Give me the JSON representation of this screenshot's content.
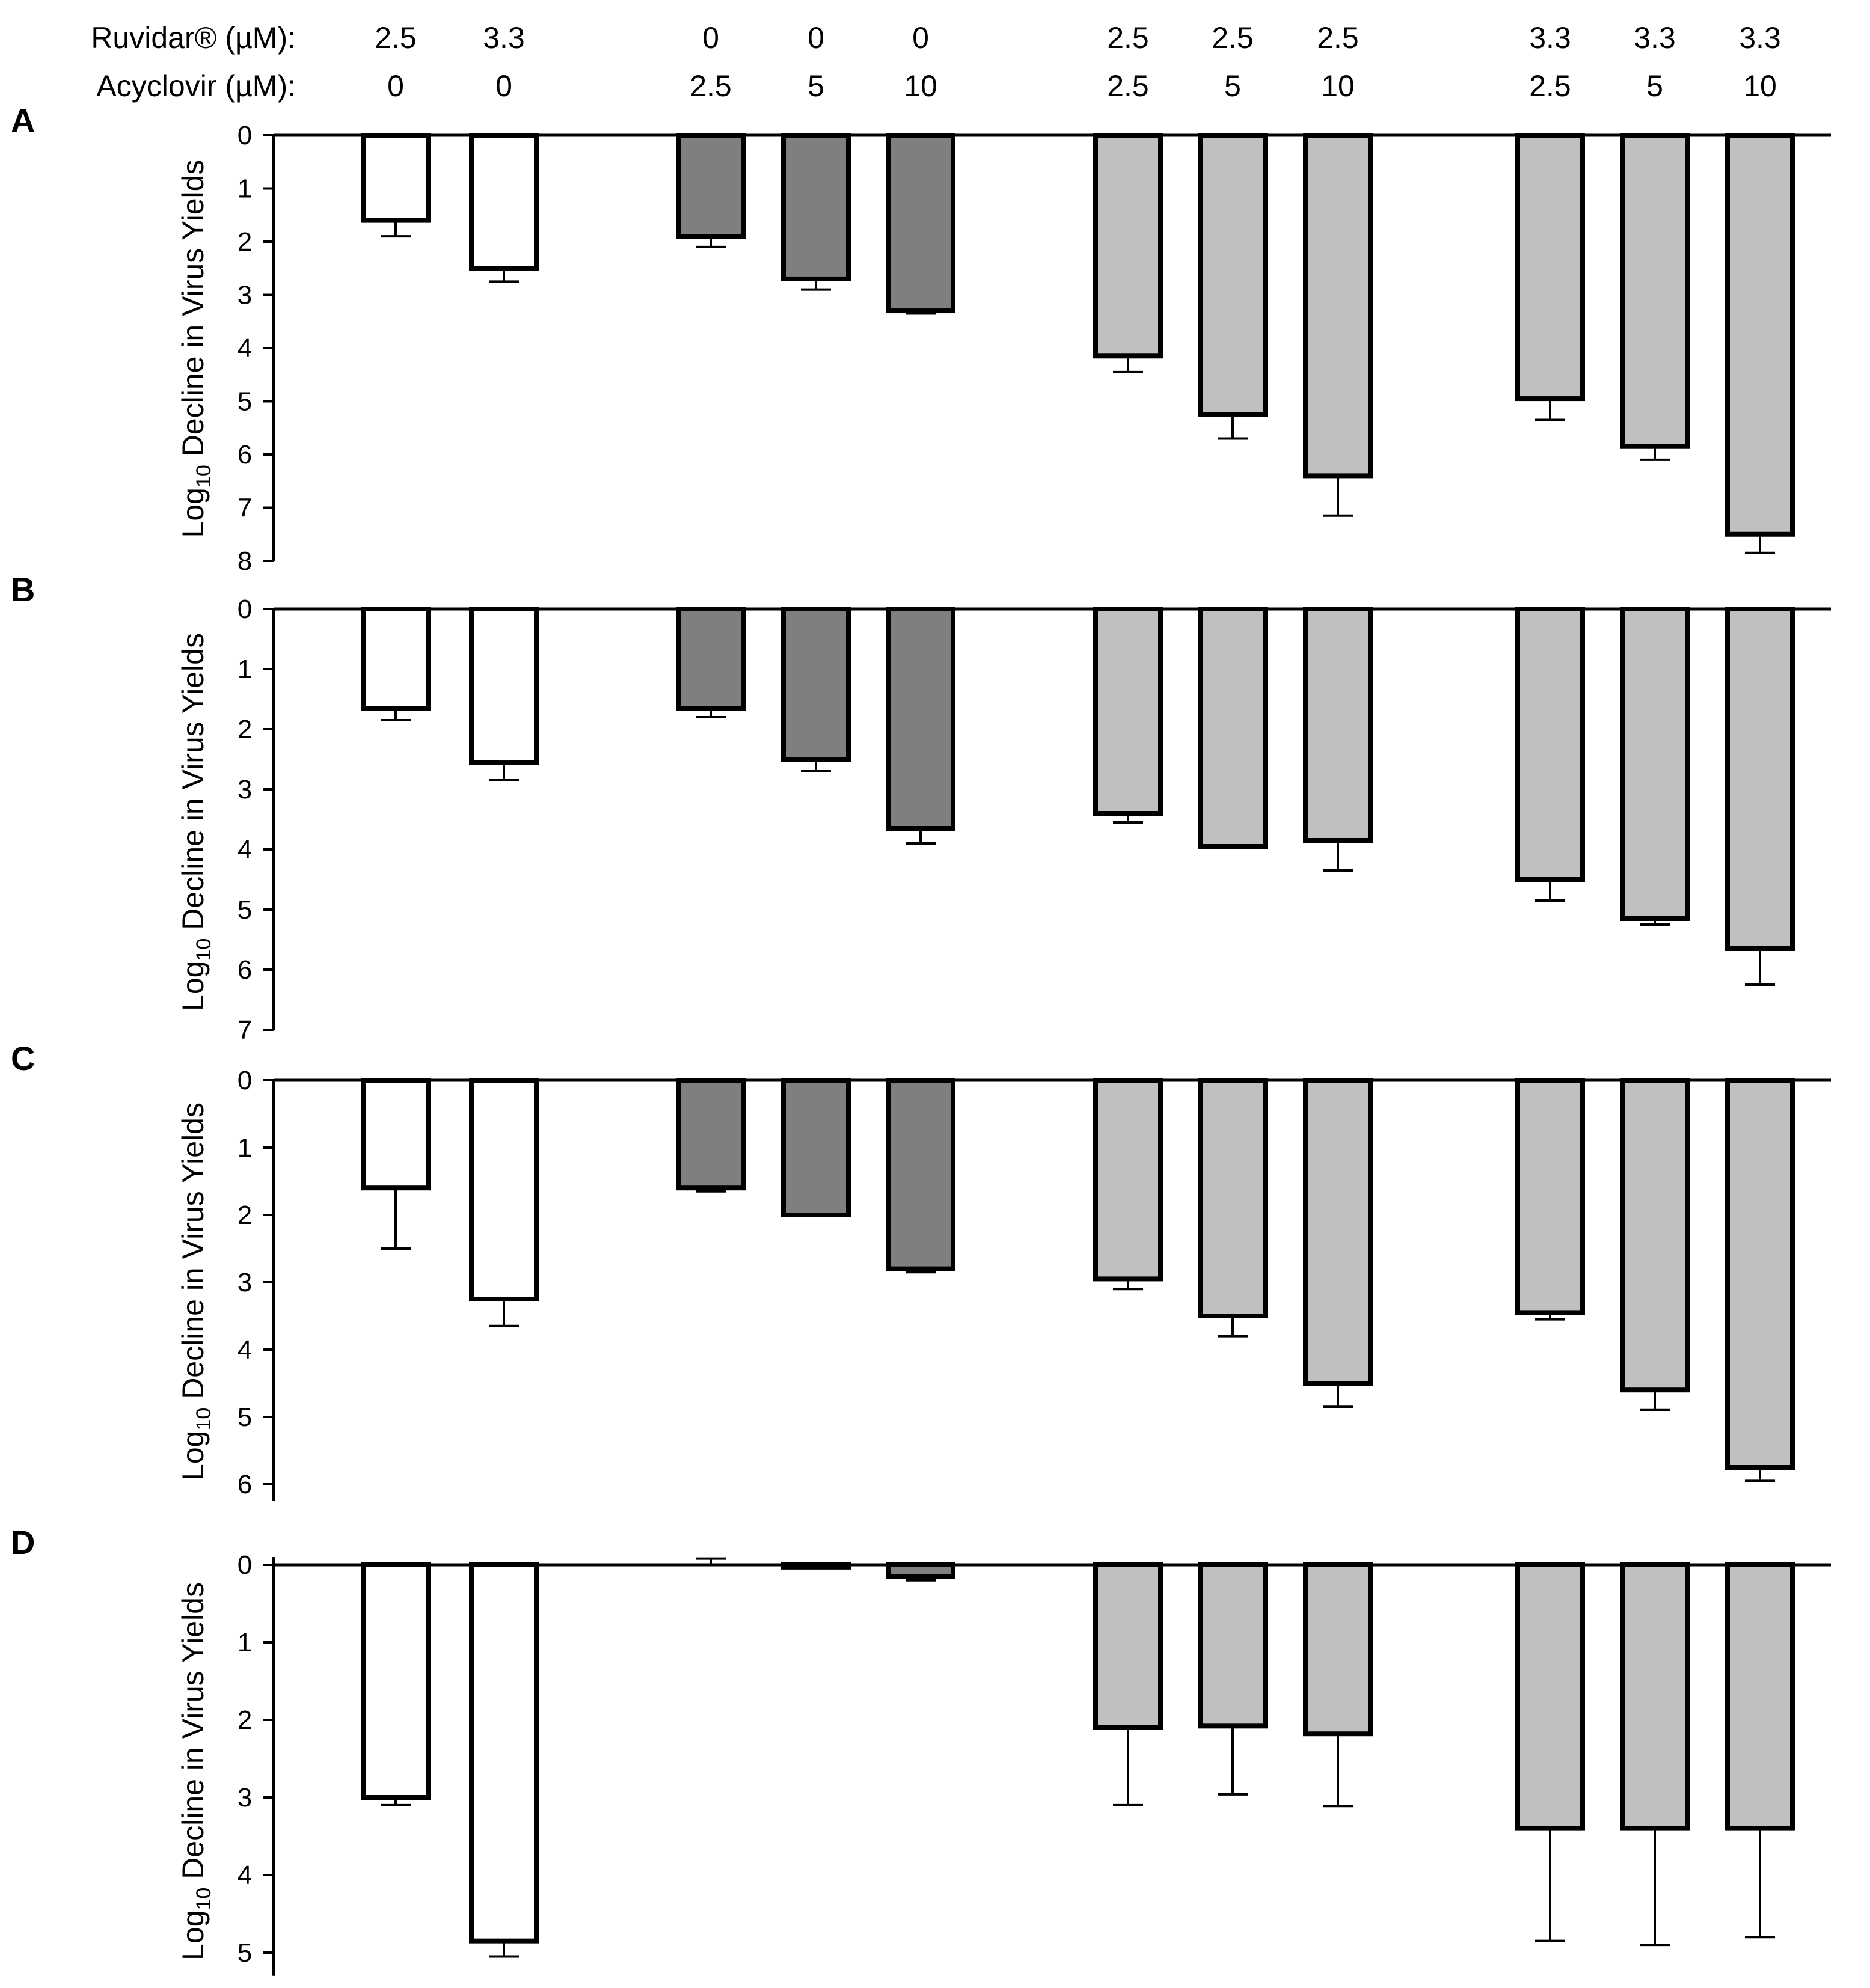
{
  "header": {
    "row1_label": "Ruvidar® (µM):",
    "row2_label": "Acyclovir (µM):",
    "ruvidar": [
      "2.5",
      "3.3",
      "0",
      "0",
      "0",
      "2.5",
      "2.5",
      "2.5",
      "3.3",
      "3.3",
      "3.3"
    ],
    "acyclovir": [
      "0",
      "0",
      "2.5",
      "5",
      "10",
      "2.5",
      "5",
      "10",
      "2.5",
      "5",
      "10"
    ]
  },
  "colors": {
    "ruvidar_only": "#ffffff",
    "acyclovir_only": "#7f7f7f",
    "combination": "#c0c0c0",
    "stroke": "#000000"
  },
  "chart_data": [
    {
      "type": "bar",
      "panel": "A",
      "ylabel_main": "Log",
      "ylabel_sub": "10",
      "ylabel_rest": " Decline in Virus Yields",
      "yticks": [
        "0",
        "1",
        "2",
        "3",
        "4",
        "5",
        "6",
        "7",
        "8"
      ],
      "ylim": [
        0,
        8
      ],
      "y_inverted": true,
      "values": [
        1.6,
        2.5,
        1.9,
        2.7,
        3.3,
        4.15,
        5.25,
        6.4,
        4.95,
        5.85,
        7.5
      ],
      "errors": [
        0.3,
        0.25,
        0.2,
        0.2,
        0.05,
        0.3,
        0.45,
        0.75,
        0.4,
        0.25,
        0.35
      ],
      "colors": [
        "ruvidar_only",
        "ruvidar_only",
        "acyclovir_only",
        "acyclovir_only",
        "acyclovir_only",
        "combination",
        "combination",
        "combination",
        "combination",
        "combination",
        "combination"
      ]
    },
    {
      "type": "bar",
      "panel": "B",
      "ylabel_main": "Log",
      "ylabel_sub": "10",
      "ylabel_rest": " Decline in Virus Yields",
      "yticks": [
        "0",
        "1",
        "2",
        "3",
        "4",
        "5",
        "6",
        "7"
      ],
      "ylim": [
        0,
        7
      ],
      "y_inverted": true,
      "values": [
        1.65,
        2.55,
        1.65,
        2.5,
        3.65,
        3.4,
        3.95,
        3.85,
        4.5,
        5.15,
        5.65
      ],
      "errors": [
        0.2,
        0.3,
        0.15,
        0.2,
        0.25,
        0.15,
        0.0,
        0.5,
        0.35,
        0.1,
        0.6
      ],
      "colors": [
        "ruvidar_only",
        "ruvidar_only",
        "acyclovir_only",
        "acyclovir_only",
        "acyclovir_only",
        "combination",
        "combination",
        "combination",
        "combination",
        "combination",
        "combination"
      ]
    },
    {
      "type": "bar",
      "panel": "C",
      "ylabel_main": "Log",
      "ylabel_sub": "10",
      "ylabel_rest": " Decline in Virus Yields",
      "yticks": [
        "0",
        "1",
        "2",
        "3",
        "4",
        "5",
        "6"
      ],
      "ylim": [
        0,
        6.25
      ],
      "y_inverted": true,
      "values": [
        1.6,
        3.25,
        1.6,
        2.0,
        2.8,
        2.95,
        3.5,
        4.5,
        3.45,
        4.6,
        5.75
      ],
      "errors": [
        0.9,
        0.4,
        0.05,
        0.0,
        0.05,
        0.15,
        0.3,
        0.35,
        0.1,
        0.3,
        0.2
      ],
      "colors": [
        "ruvidar_only",
        "ruvidar_only",
        "acyclovir_only",
        "acyclovir_only",
        "acyclovir_only",
        "combination",
        "combination",
        "combination",
        "combination",
        "combination",
        "combination"
      ]
    },
    {
      "type": "bar",
      "panel": "D",
      "ylabel_main": "Log",
      "ylabel_sub": "10",
      "ylabel_rest": " Decline in Virus Yields",
      "yticks": [
        "0",
        "1",
        "2",
        "3",
        "4",
        "5"
      ],
      "ylim": [
        -0.1,
        5.3
      ],
      "y_inverted": true,
      "values": [
        3.0,
        4.85,
        0.0,
        0.03,
        0.15,
        2.1,
        2.08,
        2.18,
        3.4,
        3.4,
        3.4
      ],
      "errors": [
        0.1,
        0.2,
        0.08,
        0.0,
        0.05,
        1.0,
        0.88,
        0.93,
        1.45,
        1.5,
        1.4
      ],
      "colors": [
        "ruvidar_only",
        "ruvidar_only",
        "acyclovir_only",
        "acyclovir_only",
        "acyclovir_only",
        "combination",
        "combination",
        "combination",
        "combination",
        "combination",
        "combination"
      ]
    }
  ]
}
